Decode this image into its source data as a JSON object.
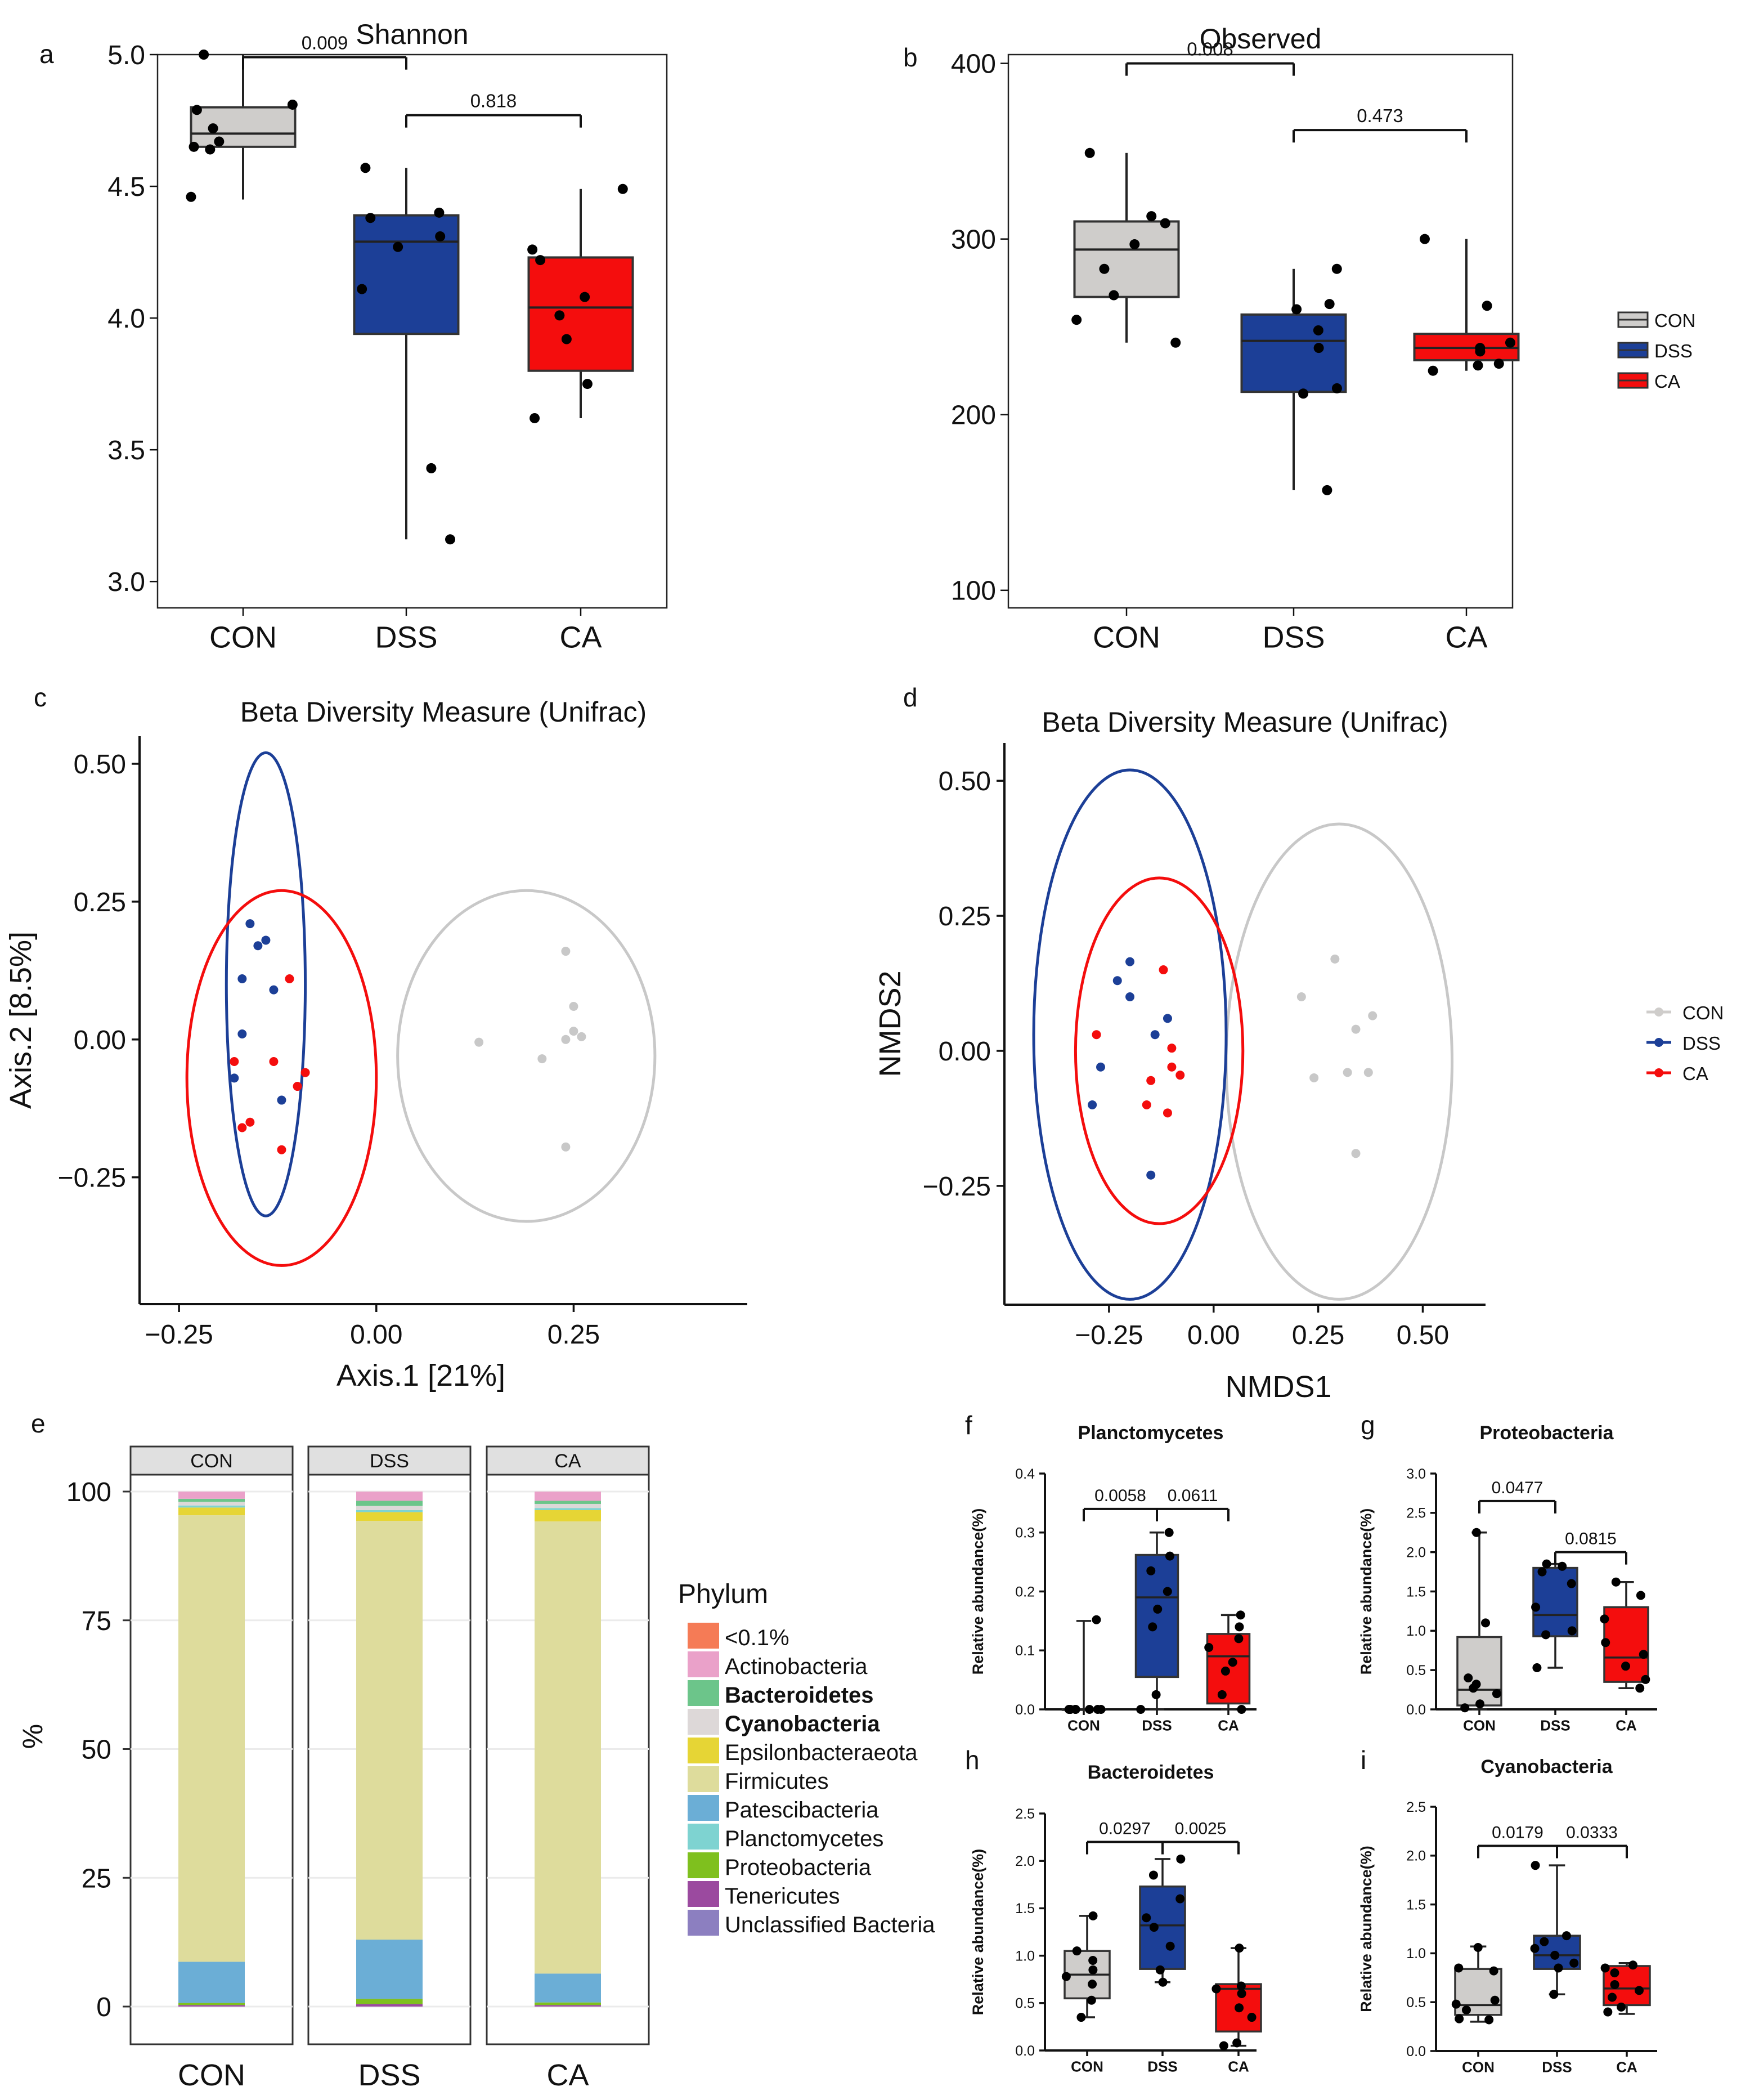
{
  "colors": {
    "CON": "#cfcdcb",
    "DSS": "#1c3f97",
    "CA": "#f40d0d",
    "CON_light": "#c8c8c8",
    "point": "#000000"
  },
  "chart_data": [
    {
      "id": "a",
      "panel_letter": "a",
      "type": "box",
      "title": "Shannon",
      "categories": [
        "CON",
        "DSS",
        "CA"
      ],
      "ylim": [
        2.9,
        5.0
      ],
      "yticks": [
        3.0,
        3.5,
        4.0,
        4.5,
        5.0
      ],
      "ytick_labels": [
        "3.0",
        "3.5",
        "4.0",
        "4.5",
        "5.0"
      ],
      "boxes": [
        {
          "group": "CON",
          "min": 4.45,
          "q1": 4.65,
          "median": 4.7,
          "q3": 4.8,
          "max": 5.0
        },
        {
          "group": "DSS",
          "min": 3.16,
          "q1": 3.94,
          "median": 4.29,
          "q3": 4.39,
          "max": 4.57
        },
        {
          "group": "CA",
          "min": 3.62,
          "q1": 3.8,
          "median": 4.04,
          "q3": 4.23,
          "max": 4.49
        }
      ],
      "points": [
        [
          4.46,
          4.64,
          4.65,
          4.67,
          4.72,
          4.79,
          4.81,
          5.0
        ],
        [
          3.16,
          3.43,
          4.11,
          4.27,
          4.31,
          4.38,
          4.4,
          4.57
        ],
        [
          3.62,
          3.75,
          3.92,
          4.01,
          4.08,
          4.22,
          4.26,
          4.49
        ]
      ],
      "comparisons": [
        {
          "from": 0,
          "to": 1,
          "label": "0.009",
          "y": 4.99
        },
        {
          "from": 1,
          "to": 2,
          "label": "0.818",
          "y": 4.77
        }
      ]
    },
    {
      "id": "b",
      "panel_letter": "b",
      "type": "box",
      "title": "Observed",
      "categories": [
        "CON",
        "DSS",
        "CA"
      ],
      "ylim": [
        90,
        405
      ],
      "yticks": [
        100,
        200,
        300,
        400
      ],
      "ytick_labels": [
        "100",
        "200",
        "300",
        "400"
      ],
      "boxes": [
        {
          "group": "CON",
          "min": 241,
          "q1": 267,
          "median": 294,
          "q3": 310,
          "max": 349
        },
        {
          "group": "DSS",
          "min": 157,
          "q1": 213,
          "median": 242,
          "q3": 257,
          "max": 283
        },
        {
          "group": "CA",
          "min": 225,
          "q1": 231,
          "median": 238,
          "q3": 246,
          "max": 300
        }
      ],
      "points": [
        [
          241,
          254,
          268,
          283,
          297,
          309,
          313,
          349
        ],
        [
          157,
          212,
          215,
          238,
          248,
          260,
          263,
          283
        ],
        [
          225,
          228,
          229,
          236,
          238,
          241,
          262,
          300
        ]
      ],
      "comparisons": [
        {
          "from": 0,
          "to": 1,
          "label": "0.008",
          "y": 400
        },
        {
          "from": 1,
          "to": 2,
          "label": "0.473",
          "y": 362
        }
      ],
      "legend": [
        "CON",
        "DSS",
        "CA"
      ]
    },
    {
      "id": "c",
      "panel_letter": "c",
      "type": "scatter",
      "title": "Beta Diversity Measure (Unifrac)",
      "xlabel": "Axis.1 [21%]",
      "ylabel": "Axis.2 [8.5%]",
      "xlim": [
        -0.3,
        0.47
      ],
      "ylim": [
        -0.48,
        0.55
      ],
      "xticks": [
        -0.25,
        0.0,
        0.25
      ],
      "xtick_labels": [
        "−0.25",
        "0.00",
        "0.25"
      ],
      "yticks": [
        -0.25,
        0.0,
        0.25,
        0.5
      ],
      "ytick_labels": [
        "−0.25",
        "0.00",
        "0.25",
        "0.50"
      ],
      "series": [
        {
          "name": "CON",
          "points": [
            [
              0.13,
              -0.005
            ],
            [
              0.21,
              -0.035
            ],
            [
              0.24,
              0.16
            ],
            [
              0.24,
              0.0
            ],
            [
              0.25,
              0.06
            ],
            [
              0.25,
              0.015
            ],
            [
              0.26,
              0.005
            ],
            [
              0.24,
              -0.195
            ]
          ]
        },
        {
          "name": "DSS",
          "points": [
            [
              -0.16,
              0.21
            ],
            [
              -0.15,
              0.17
            ],
            [
              -0.14,
              0.18
            ],
            [
              -0.17,
              0.11
            ],
            [
              -0.13,
              0.09
            ],
            [
              -0.17,
              0.01
            ],
            [
              -0.18,
              -0.07
            ],
            [
              -0.12,
              -0.11
            ]
          ]
        },
        {
          "name": "CA",
          "points": [
            [
              -0.11,
              0.11
            ],
            [
              -0.18,
              -0.04
            ],
            [
              -0.13,
              -0.04
            ],
            [
              -0.09,
              -0.06
            ],
            [
              -0.1,
              -0.085
            ],
            [
              -0.17,
              -0.16
            ],
            [
              -0.16,
              -0.15
            ],
            [
              -0.12,
              -0.2
            ]
          ]
        }
      ],
      "ellipses": [
        {
          "name": "CON",
          "cx": 0.19,
          "cy": -0.03,
          "rx": 0.163,
          "ry": 0.3
        },
        {
          "name": "DSS",
          "cx": -0.14,
          "cy": 0.1,
          "rx": 0.05,
          "ry": 0.42
        },
        {
          "name": "CA",
          "cx": -0.12,
          "cy": -0.07,
          "rx": 0.12,
          "ry": 0.34
        }
      ]
    },
    {
      "id": "d",
      "panel_letter": "d",
      "type": "scatter",
      "title": "Beta Diversity Measure (Unifrac)",
      "xlabel": "NMDS1",
      "ylabel": "NMDS2",
      "xlim": [
        -0.5,
        0.65
      ],
      "ylim": [
        -0.47,
        0.57
      ],
      "xticks": [
        -0.25,
        0.0,
        0.25,
        0.5
      ],
      "xtick_labels": [
        "−0.25",
        "0.00",
        "0.25",
        "0.50"
      ],
      "yticks": [
        -0.25,
        0.0,
        0.25,
        0.5
      ],
      "ytick_labels": [
        "−0.25",
        "0.00",
        "0.25",
        "0.50"
      ],
      "series": [
        {
          "name": "CON",
          "points": [
            [
              0.21,
              0.1
            ],
            [
              0.29,
              0.17
            ],
            [
              0.24,
              -0.05
            ],
            [
              0.32,
              -0.04
            ],
            [
              0.34,
              0.04
            ],
            [
              0.37,
              -0.04
            ],
            [
              0.38,
              0.065
            ],
            [
              0.34,
              -0.19
            ]
          ]
        },
        {
          "name": "DSS",
          "points": [
            [
              -0.23,
              0.13
            ],
            [
              -0.2,
              0.165
            ],
            [
              -0.2,
              0.1
            ],
            [
              -0.11,
              0.06
            ],
            [
              -0.14,
              0.03
            ],
            [
              -0.27,
              -0.03
            ],
            [
              -0.29,
              -0.1
            ],
            [
              -0.15,
              -0.23
            ]
          ]
        },
        {
          "name": "CA",
          "points": [
            [
              -0.12,
              0.15
            ],
            [
              -0.28,
              0.03
            ],
            [
              -0.1,
              0.005
            ],
            [
              -0.08,
              -0.045
            ],
            [
              -0.1,
              -0.03
            ],
            [
              -0.15,
              -0.055
            ],
            [
              -0.16,
              -0.1
            ],
            [
              -0.11,
              -0.115
            ]
          ]
        }
      ],
      "ellipses": [
        {
          "name": "CON",
          "cx": 0.3,
          "cy": -0.02,
          "rx": 0.27,
          "ry": 0.44
        },
        {
          "name": "DSS",
          "cx": -0.2,
          "cy": 0.03,
          "rx": 0.23,
          "ry": 0.49
        },
        {
          "name": "CA",
          "cx": -0.13,
          "cy": 0.0,
          "rx": 0.2,
          "ry": 0.32
        }
      ],
      "legend": [
        "CON",
        "DSS",
        "CA"
      ]
    },
    {
      "id": "e",
      "panel_letter": "e",
      "type": "stacked-bar",
      "categories": [
        "CON",
        "DSS",
        "CA"
      ],
      "ylabel": "%",
      "ylim": [
        0,
        100
      ],
      "yticks": [
        0,
        25,
        50,
        75,
        100
      ],
      "ytick_labels": [
        "0",
        "25",
        "50",
        "75",
        "100"
      ],
      "legend_title": "Phylum",
      "series": [
        {
          "name": "Tenericutes",
          "color": "#9b4a9f",
          "bold": false,
          "values": [
            0.3,
            0.5,
            0.3
          ]
        },
        {
          "name": "Proteobacteria",
          "color": "#7fc01e",
          "bold": false,
          "values": [
            0.4,
            1.0,
            0.5
          ]
        },
        {
          "name": "Patescibacteria",
          "color": "#6baed6",
          "bold": false,
          "values": [
            8.0,
            11.5,
            5.6
          ]
        },
        {
          "name": "Firmicutes",
          "color": "#dedc9c",
          "bold": false,
          "values": [
            86.7,
            81.3,
            87.8
          ]
        },
        {
          "name": "Epsilonbacteraeota",
          "color": "#e6d535",
          "bold": false,
          "values": [
            1.5,
            1.7,
            2.2
          ]
        },
        {
          "name": "Planctomycetes",
          "color": "#7ed3d1",
          "bold": false,
          "values": [
            0.4,
            0.4,
            0.4
          ]
        },
        {
          "name": "Cyanobacteria",
          "color": "#ddd8d8",
          "bold": true,
          "values": [
            0.7,
            0.8,
            0.8
          ]
        },
        {
          "name": "Bacteroidetes",
          "color": "#6cc58a",
          "bold": true,
          "values": [
            0.6,
            1.0,
            0.6
          ]
        },
        {
          "name": "Actinobacteria",
          "color": "#eaa1c9",
          "bold": false,
          "values": [
            1.4,
            1.8,
            1.8
          ]
        }
      ],
      "legend_entries": [
        {
          "name": "<0.1%",
          "color": "#f57b56",
          "bold": false
        },
        {
          "name": "Actinobacteria",
          "color": "#eaa1c9",
          "bold": false
        },
        {
          "name": "Bacteroidetes",
          "color": "#6cc58a",
          "bold": true
        },
        {
          "name": "Cyanobacteria",
          "color": "#ddd8d8",
          "bold": true
        },
        {
          "name": "Epsilonbacteraeota",
          "color": "#e6d535",
          "bold": false
        },
        {
          "name": "Firmicutes",
          "color": "#dedc9c",
          "bold": false
        },
        {
          "name": "Patescibacteria",
          "color": "#6baed6",
          "bold": false
        },
        {
          "name": "Planctomycetes",
          "color": "#7ed3d1",
          "bold": false
        },
        {
          "name": "Proteobacteria",
          "color": "#7fc01e",
          "bold": false
        },
        {
          "name": "Tenericutes",
          "color": "#9b4a9f",
          "bold": false
        },
        {
          "name": "Unclassified Bacteria",
          "color": "#8c7fc0",
          "bold": false
        }
      ]
    },
    {
      "id": "f",
      "panel_letter": "f",
      "type": "box",
      "title": "Planctomycetes",
      "ylabel": "Relative abundance(%)",
      "categories": [
        "CON",
        "DSS",
        "CA"
      ],
      "ylim": [
        0,
        0.4
      ],
      "yticks": [
        0.0,
        0.1,
        0.2,
        0.3,
        0.4
      ],
      "ytick_labels": [
        "0.0",
        "0.1",
        "0.2",
        "0.3",
        "0.4"
      ],
      "boxes": [
        {
          "group": "CON",
          "min": 0.0,
          "q1": 0.0,
          "median": 0.0,
          "q3": 0.0,
          "max": 0.15
        },
        {
          "group": "DSS",
          "min": 0.0,
          "q1": 0.055,
          "median": 0.19,
          "q3": 0.262,
          "max": 0.3
        },
        {
          "group": "CA",
          "min": 0.0,
          "q1": 0.01,
          "median": 0.09,
          "q3": 0.128,
          "max": 0.16
        }
      ],
      "points": [
        [
          0.0,
          0.0,
          0.0,
          0.0,
          0.0,
          0.0,
          0.0,
          0.152
        ],
        [
          0.0,
          0.025,
          0.14,
          0.17,
          0.2,
          0.235,
          0.26,
          0.3
        ],
        [
          0.0,
          0.025,
          0.065,
          0.08,
          0.105,
          0.12,
          0.14,
          0.16
        ]
      ],
      "comparisons": [
        {
          "from": 0,
          "to": 1,
          "label": "0.0058",
          "y": 0.34
        },
        {
          "from": 1,
          "to": 2,
          "label": "0.0611",
          "y": 0.34
        }
      ]
    },
    {
      "id": "g",
      "panel_letter": "g",
      "type": "box",
      "title": "Proteobacteria",
      "ylabel": "Relative abundance(%)",
      "categories": [
        "CON",
        "DSS",
        "CA"
      ],
      "ylim": [
        0,
        3.0
      ],
      "yticks": [
        0.0,
        0.5,
        1.0,
        1.5,
        2.0,
        2.5,
        3.0
      ],
      "ytick_labels": [
        "0.0",
        "0.5",
        "1.0",
        "1.5",
        "2.0",
        "2.5",
        "3.0"
      ],
      "boxes": [
        {
          "group": "CON",
          "min": 0.0,
          "q1": 0.05,
          "median": 0.25,
          "q3": 0.92,
          "max": 2.25
        },
        {
          "group": "DSS",
          "min": 0.53,
          "q1": 0.93,
          "median": 1.2,
          "q3": 1.8,
          "max": 1.85
        },
        {
          "group": "CA",
          "min": 0.27,
          "q1": 0.35,
          "median": 0.66,
          "q3": 1.3,
          "max": 1.62
        }
      ],
      "points": [
        [
          0.02,
          0.07,
          0.2,
          0.27,
          0.32,
          0.4,
          1.1,
          2.25
        ],
        [
          0.53,
          0.95,
          1.0,
          1.3,
          1.6,
          1.75,
          1.82,
          1.85
        ],
        [
          0.27,
          0.38,
          0.55,
          0.7,
          0.85,
          1.15,
          1.45,
          1.62
        ]
      ],
      "comparisons": [
        {
          "from": 0,
          "to": 1,
          "label": "0.0477",
          "y": 2.65
        },
        {
          "from": 1,
          "to": 2,
          "label": "0.0815",
          "y": 2.0
        }
      ]
    },
    {
      "id": "h",
      "panel_letter": "h",
      "type": "box",
      "title": "Bacteroidetes",
      "ylabel": "Relative abundance(%)",
      "categories": [
        "CON",
        "DSS",
        "CA"
      ],
      "ylim": [
        0,
        2.5
      ],
      "yticks": [
        0.0,
        0.5,
        1.0,
        1.5,
        2.0,
        2.5
      ],
      "ytick_labels": [
        "0.0",
        "0.5",
        "1.0",
        "1.5",
        "2.0",
        "2.5"
      ],
      "boxes": [
        {
          "group": "CON",
          "min": 0.35,
          "q1": 0.55,
          "median": 0.8,
          "q3": 1.05,
          "max": 1.42
        },
        {
          "group": "DSS",
          "min": 0.72,
          "q1": 0.86,
          "median": 1.32,
          "q3": 1.73,
          "max": 2.02
        },
        {
          "group": "CA",
          "min": 0.05,
          "q1": 0.2,
          "median": 0.65,
          "q3": 0.7,
          "max": 1.08
        }
      ],
      "points": [
        [
          0.35,
          0.53,
          0.7,
          0.78,
          0.85,
          0.95,
          1.05,
          1.42
        ],
        [
          0.72,
          0.85,
          1.1,
          1.3,
          1.4,
          1.6,
          1.85,
          2.02
        ],
        [
          0.05,
          0.08,
          0.35,
          0.45,
          0.6,
          0.65,
          0.68,
          1.08
        ]
      ],
      "comparisons": [
        {
          "from": 0,
          "to": 1,
          "label": "0.0297",
          "y": 2.2
        },
        {
          "from": 1,
          "to": 2,
          "label": "0.0025",
          "y": 2.2
        }
      ]
    },
    {
      "id": "i",
      "panel_letter": "i",
      "type": "box",
      "title": "Cyanobacteria",
      "ylabel": "Relative abundance(%)",
      "categories": [
        "CON",
        "DSS",
        "CA"
      ],
      "ylim": [
        0,
        2.5
      ],
      "yticks": [
        0.0,
        0.5,
        1.0,
        1.5,
        2.0,
        2.5
      ],
      "ytick_labels": [
        "0.0",
        "0.5",
        "1.0",
        "1.5",
        "2.0",
        "2.5"
      ],
      "boxes": [
        {
          "group": "CON",
          "min": 0.3,
          "q1": 0.37,
          "median": 0.47,
          "q3": 0.84,
          "max": 1.07
        },
        {
          "group": "DSS",
          "min": 0.58,
          "q1": 0.84,
          "median": 0.98,
          "q3": 1.18,
          "max": 1.9
        },
        {
          "group": "CA",
          "min": 0.38,
          "q1": 0.47,
          "median": 0.64,
          "q3": 0.87,
          "max": 0.9
        }
      ],
      "points": [
        [
          0.32,
          0.33,
          0.42,
          0.48,
          0.52,
          0.82,
          0.85,
          1.06
        ],
        [
          0.58,
          0.85,
          0.9,
          0.98,
          1.05,
          1.12,
          1.18,
          1.9
        ],
        [
          0.4,
          0.45,
          0.55,
          0.62,
          0.68,
          0.8,
          0.85,
          0.88
        ]
      ],
      "comparisons": [
        {
          "from": 0,
          "to": 1,
          "label": "0.0179",
          "y": 2.1
        },
        {
          "from": 1,
          "to": 2,
          "label": "0.0333",
          "y": 2.1
        }
      ]
    }
  ]
}
